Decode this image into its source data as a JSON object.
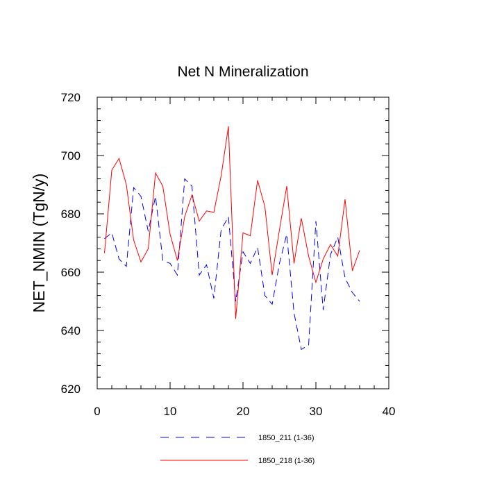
{
  "chart_data": {
    "type": "line",
    "title": "Net N Mineralization",
    "xlabel": "",
    "ylabel": "NET_NMIN  (TgN/y)",
    "xlim": [
      0,
      40
    ],
    "ylim": [
      620,
      720
    ],
    "xticks": [
      0,
      10,
      20,
      30,
      40
    ],
    "xtick_labels": [
      "0",
      "10",
      "20",
      "30",
      "40"
    ],
    "yticks": [
      620,
      640,
      660,
      680,
      700,
      720
    ],
    "ytick_labels": [
      "620",
      "640",
      "660",
      "680",
      "700",
      "720"
    ],
    "x": [
      1,
      2,
      3,
      4,
      5,
      6,
      7,
      8,
      9,
      10,
      11,
      12,
      13,
      14,
      15,
      16,
      17,
      18,
      19,
      20,
      21,
      22,
      23,
      24,
      25,
      26,
      27,
      28,
      29,
      30,
      31,
      32,
      33,
      34,
      35,
      36
    ],
    "series": [
      {
        "name": "1850_211 (1-36)",
        "color": "#0000ff",
        "dash": "dashed",
        "values": [
          671.5,
          673.5,
          664.5,
          662,
          689,
          686,
          674,
          686,
          664,
          663,
          659,
          692,
          689.5,
          659,
          662.5,
          651,
          674.5,
          679,
          650,
          667,
          663,
          668.5,
          652,
          649,
          663,
          673,
          646,
          633.5,
          635,
          677.5,
          647,
          666,
          672,
          658,
          653,
          650
        ]
      },
      {
        "name": "1850_218 (1-36)",
        "color": "#ff0000",
        "dash": "solid",
        "values": [
          666.5,
          695,
          699,
          690,
          671,
          663.5,
          668,
          694,
          689.5,
          673,
          664,
          679,
          686.5,
          677.5,
          681,
          680.5,
          693,
          710,
          644,
          673.5,
          672.5,
          691.5,
          682.5,
          659,
          674.5,
          689.5,
          663,
          678.5,
          665.5,
          656.5,
          664.5,
          669.5,
          665.5,
          685,
          660.5,
          667.5
        ]
      }
    ],
    "legend_position": "bottom"
  }
}
